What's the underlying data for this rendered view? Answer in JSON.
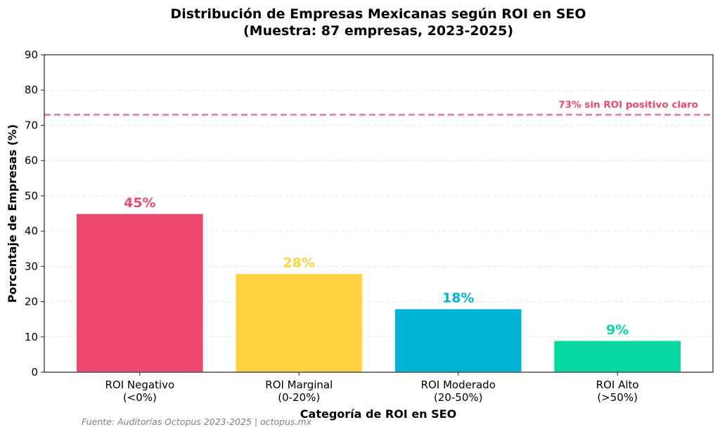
{
  "chart_data": {
    "type": "bar",
    "title": "Distribución de Empresas Mexicanas según ROI en SEO",
    "subtitle": "(Muestra: 87 empresas, 2023-2025)",
    "xlabel": "Categoría de ROI en SEO",
    "ylabel": "Porcentaje de Empresas (%)",
    "ylim": [
      0,
      90
    ],
    "yticks": [
      "0",
      "10",
      "20",
      "30",
      "40",
      "50",
      "60",
      "70",
      "80",
      "90"
    ],
    "grid": "horizontal dashed",
    "categories": [
      [
        "ROI Negativo",
        "(<0%)"
      ],
      [
        "ROI Marginal",
        "(0-20%)"
      ],
      [
        "ROI Moderado",
        "(20-50%)"
      ],
      [
        "ROI Alto",
        "(>50%)"
      ]
    ],
    "values": [
      45,
      28,
      18,
      9
    ],
    "data_labels": [
      "45%",
      "28%",
      "18%",
      "9%"
    ],
    "colors": [
      "#EF476F",
      "#FFD23F",
      "#00B4D8",
      "#06D6A0"
    ],
    "reference_line": {
      "value": 73,
      "label": "73% sin ROI positivo claro",
      "color": "#EF476F",
      "style": "dashed"
    },
    "footnote": "Fuente: Auditorías Octopus 2023-2025 | octopus.mx"
  }
}
